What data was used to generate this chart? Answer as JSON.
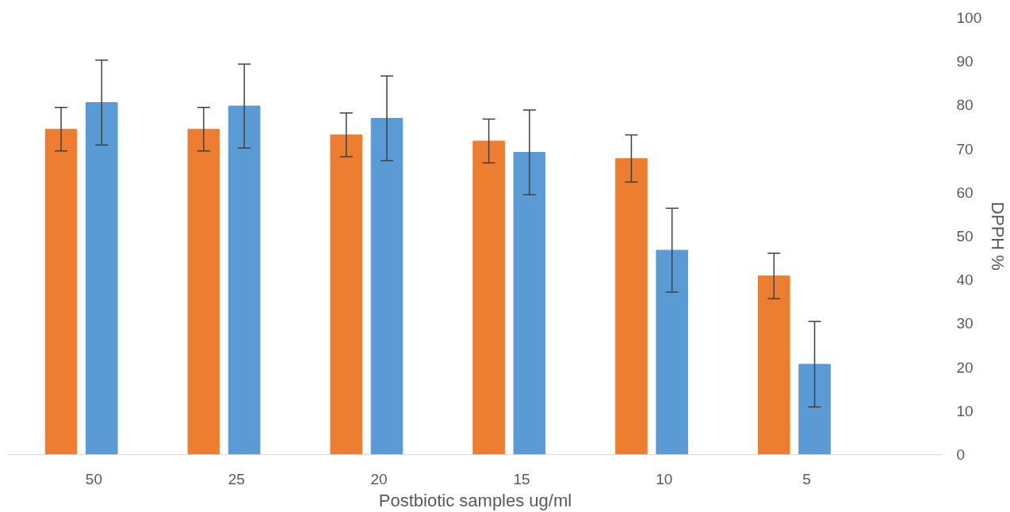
{
  "chart_data": {
    "type": "bar",
    "xlabel": "Postbiotic samples ug/ml",
    "ylabel": "DPPH %",
    "categories": [
      "50",
      "25",
      "20",
      "15",
      "10",
      "5"
    ],
    "series": [
      {
        "color": "#ed7d31",
        "values": [
          74.5,
          74.5,
          73.2,
          71.8,
          67.8,
          40.9
        ],
        "errors": [
          5,
          5,
          5,
          5,
          5.4,
          5.2
        ]
      },
      {
        "color": "#5b9bd5",
        "values": [
          80.6,
          79.8,
          77,
          69.2,
          46.8,
          20.7
        ],
        "errors": [
          9.7,
          9.6,
          9.7,
          9.7,
          9.6,
          9.8
        ]
      }
    ],
    "ylim": [
      0,
      100
    ],
    "yticks": [
      0,
      10,
      20,
      30,
      40,
      50,
      60,
      70,
      80,
      90,
      100
    ],
    "grid": false
  }
}
